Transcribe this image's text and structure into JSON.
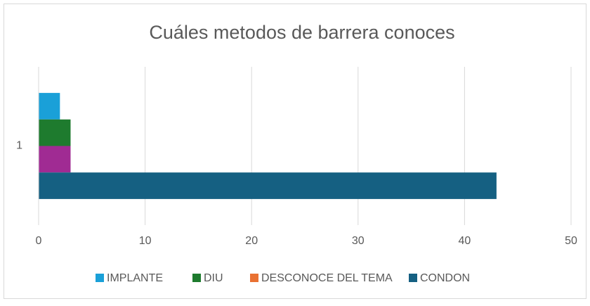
{
  "chart_data": {
    "type": "barh",
    "title": "Cuáles metodos de barrera conoces",
    "categories": [
      "1"
    ],
    "series": [
      {
        "name": "IMPLANTE",
        "color": "#1aa0d8",
        "values": [
          2
        ]
      },
      {
        "name": "DIU",
        "color": "#1e7b2e",
        "values": [
          3
        ]
      },
      {
        "name": "DESCONOCE DEL TEMA",
        "color": "#e97132",
        "bar_color": "#a02b93",
        "values": [
          3
        ]
      },
      {
        "name": "CONDON",
        "color": "#156082",
        "values": [
          43
        ]
      }
    ],
    "xlim": [
      0,
      50
    ],
    "xticks": [
      0,
      10,
      20,
      30,
      40,
      50
    ],
    "grid": true,
    "legend": "bottom"
  }
}
